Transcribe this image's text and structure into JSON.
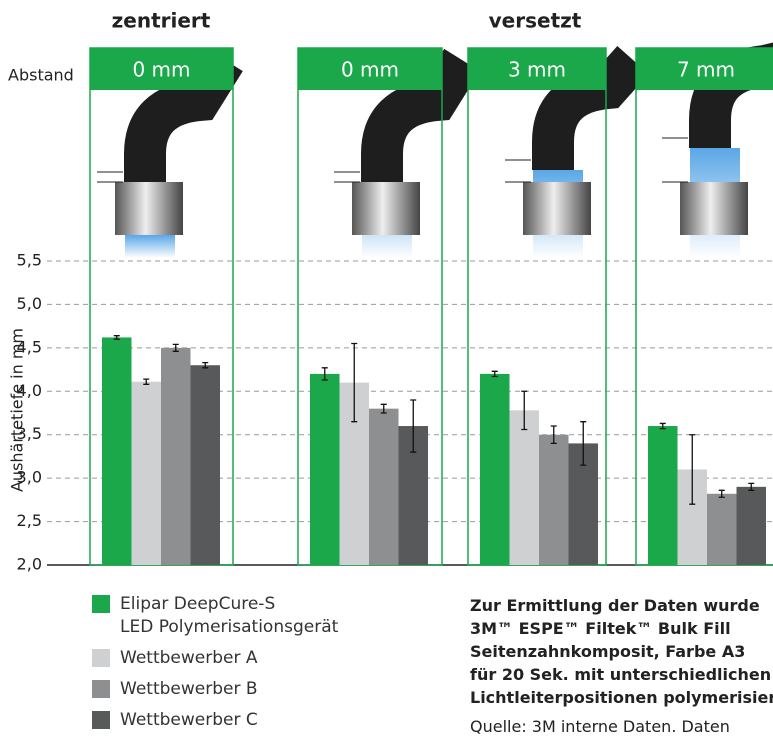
{
  "chart_data": {
    "type": "bar",
    "groups": [
      "zentriert",
      "versetzt"
    ],
    "distance_label": "Abstand",
    "categories": [
      "0 mm",
      "0 mm",
      "3 mm",
      "7 mm"
    ],
    "ylabel": "Aushärtetiefe in mm",
    "ylim": [
      2.0,
      5.5
    ],
    "yticks": [
      {
        "value": 2.0,
        "label": "2,0"
      },
      {
        "value": 2.5,
        "label": "2,5"
      },
      {
        "value": 3.0,
        "label": "3,0"
      },
      {
        "value": 3.5,
        "label": "3,5"
      },
      {
        "value": 4.0,
        "label": "4,0"
      },
      {
        "value": 4.5,
        "label": "4,5"
      },
      {
        "value": 5.0,
        "label": "5,0"
      },
      {
        "value": 5.5,
        "label": "5,5"
      }
    ],
    "grid": true,
    "series": [
      {
        "name": "Elipar DeepCure-S\nLED Polymerisationsgerät",
        "color": "#1aa84a",
        "values": [
          4.62,
          4.2,
          4.2,
          3.6
        ],
        "errors": [
          0.02,
          0.07,
          0.03,
          0.03
        ]
      },
      {
        "name": "Wettbewerber A",
        "color": "#cfd0d2",
        "values": [
          4.11,
          4.1,
          3.78,
          3.1
        ],
        "errors": [
          0.03,
          0.45,
          0.22,
          0.4
        ]
      },
      {
        "name": "Wettbewerber B",
        "color": "#8e8f91",
        "values": [
          4.5,
          3.8,
          3.5,
          2.82
        ],
        "errors": [
          0.04,
          0.05,
          0.1,
          0.04
        ]
      },
      {
        "name": "Wettbewerber C",
        "color": "#58595b",
        "values": [
          4.3,
          3.6,
          3.4,
          2.9
        ],
        "errors": [
          0.03,
          0.3,
          0.25,
          0.04
        ]
      }
    ],
    "note_lines": [
      "Zur Ermittlung der Daten wurde",
      "3M™ ESPE™ Filtek™ Bulk Fill",
      "Seitenzahnkomposit, Farbe A3",
      "für 20 Sek. mit unterschiedlichen",
      "Lichtleiterpositionen polymerisiert."
    ],
    "source": "Quelle: 3M interne Daten. Daten"
  }
}
